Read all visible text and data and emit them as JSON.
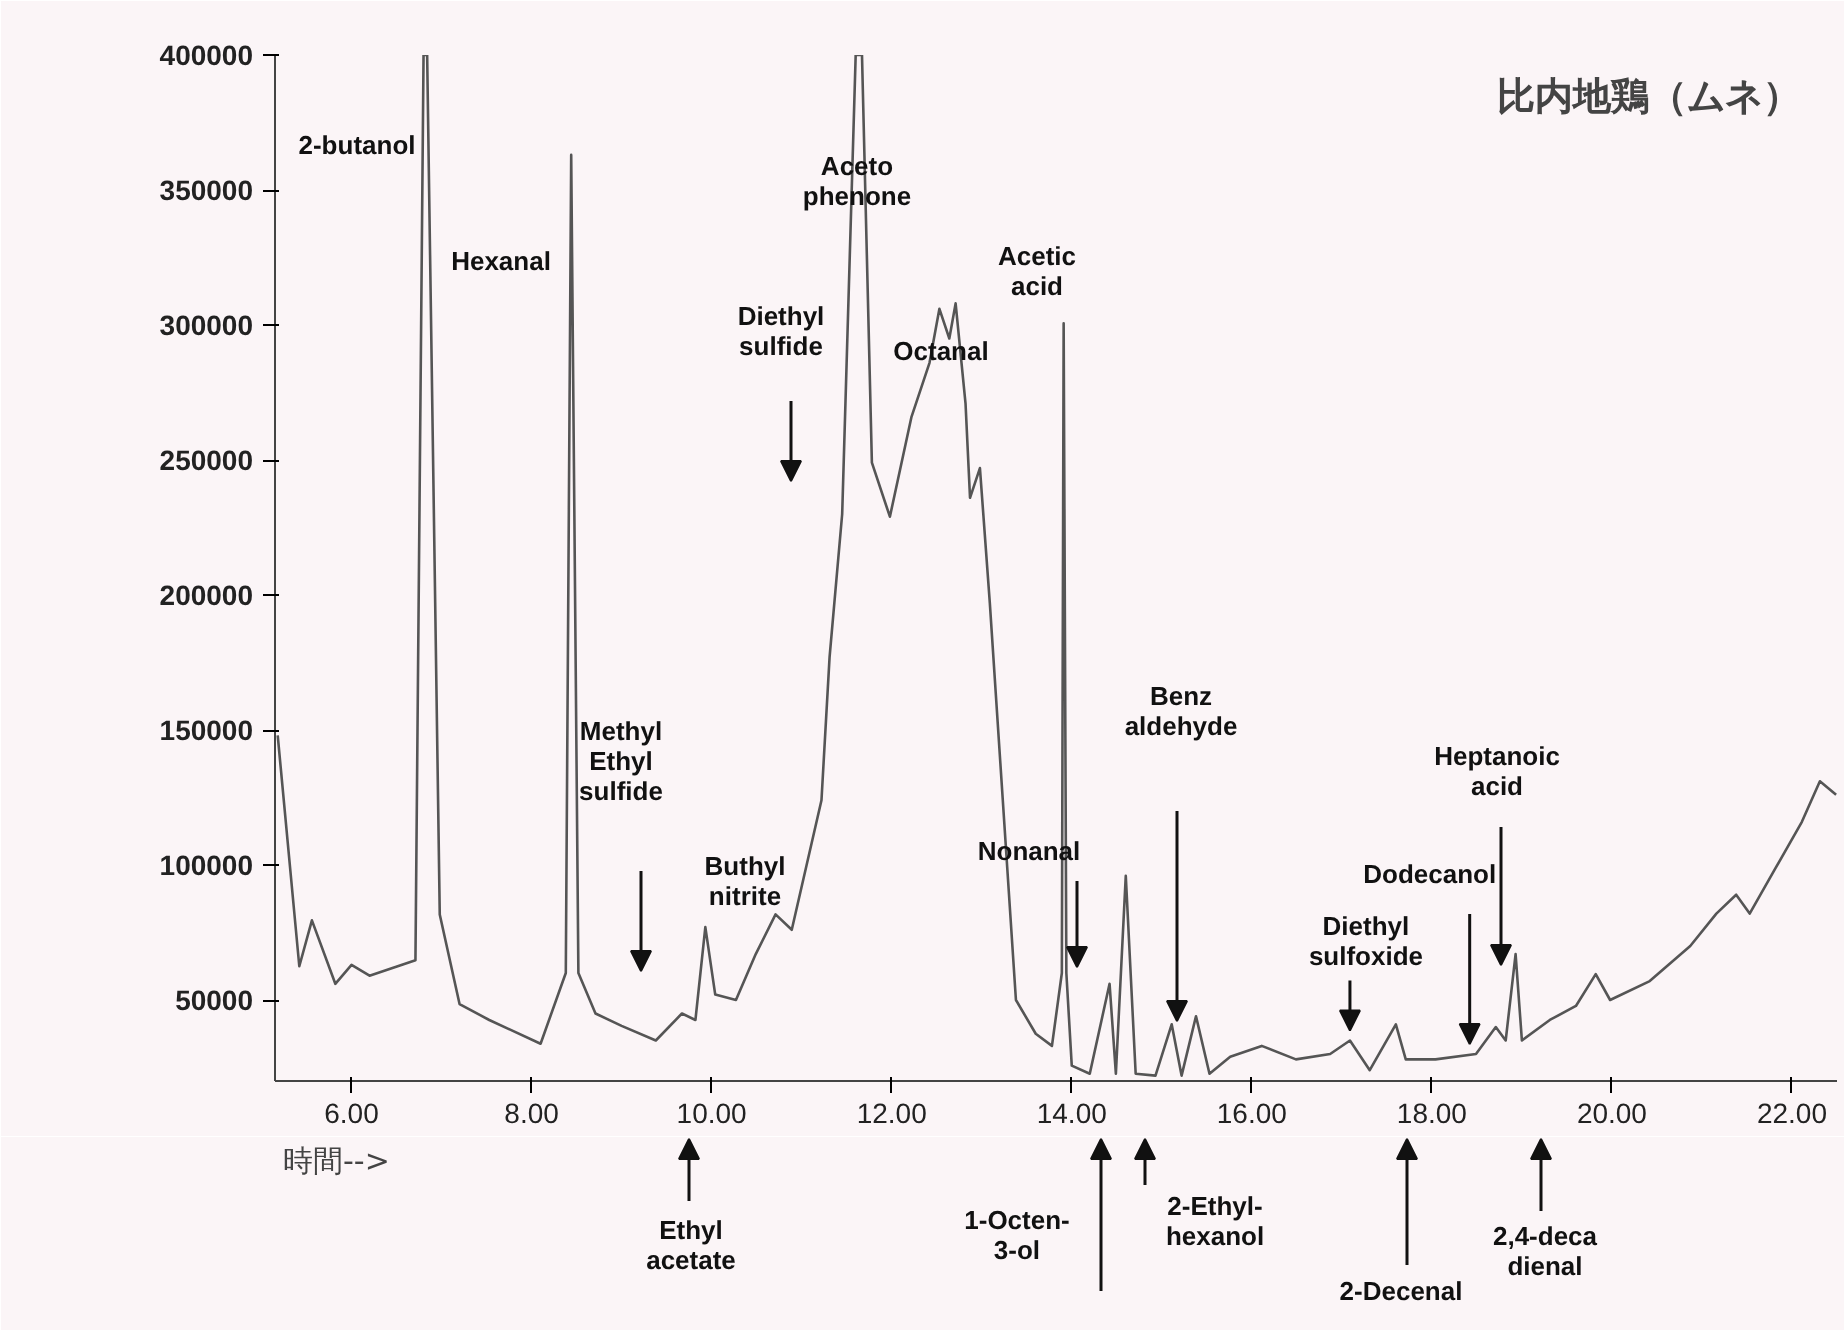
{
  "chart_data": {
    "type": "line",
    "title": "比内地鶏（ムネ）",
    "xlabel": "時間-->",
    "x": [
      5.18,
      5.42,
      5.56,
      5.82,
      6.0,
      6.2,
      6.71,
      6.8,
      6.84,
      6.98,
      7.2,
      7.53,
      8.1,
      8.38,
      8.44,
      8.52,
      8.71,
      9.0,
      9.38,
      9.67,
      9.82,
      9.93,
      10.04,
      10.27,
      10.49,
      10.71,
      10.89,
      11.22,
      11.31,
      11.45,
      11.6,
      11.67,
      11.78,
      11.98,
      12.22,
      12.42,
      12.53,
      12.64,
      12.71,
      12.82,
      12.87,
      12.98,
      13.09,
      13.38,
      13.6,
      13.78,
      13.89,
      13.91,
      13.94,
      14.0,
      14.2,
      14.42,
      14.49,
      14.6,
      14.71,
      14.93,
      15.11,
      15.22,
      15.38,
      15.53,
      15.76,
      16.11,
      16.49,
      16.87,
      17.09,
      17.31,
      17.6,
      17.71,
      18.04,
      18.49,
      18.71,
      18.82,
      18.93,
      19.0,
      19.31,
      19.6,
      19.82,
      19.98,
      20.42,
      20.87,
      21.16,
      21.38,
      21.53,
      21.82,
      22.11,
      22.31,
      22.49
    ],
    "values": [
      148000,
      62500,
      79500,
      56000,
      63000,
      59000,
      64700,
      400000,
      400000,
      81700,
      48500,
      42600,
      33800,
      60000,
      363000,
      60000,
      45000,
      40400,
      35000,
      45000,
      42600,
      77000,
      52000,
      50000,
      67000,
      81700,
      76000,
      124000,
      177000,
      230000,
      400000,
      400000,
      249000,
      229000,
      266000,
      286000,
      306000,
      295000,
      308000,
      271000,
      236000,
      247000,
      197000,
      50000,
      37500,
      33000,
      60000,
      300600,
      60000,
      25700,
      22700,
      56000,
      22700,
      96000,
      22700,
      22000,
      41000,
      22000,
      44000,
      22700,
      29000,
      33000,
      28000,
      30000,
      35000,
      24000,
      41000,
      28000,
      28000,
      30000,
      40000,
      35000,
      67000,
      35000,
      42600,
      47800,
      59600,
      50000,
      57000,
      70000,
      82000,
      89000,
      82000,
      99000,
      116000,
      131000,
      126000
    ],
    "color": "#555555",
    "line_style": "solid",
    "marker": "none",
    "grid": false,
    "xlim": [
      5.15,
      22.5
    ],
    "ylim": [
      20000,
      400000
    ],
    "xticks": [
      {
        "value": 6,
        "label": "6.00"
      },
      {
        "value": 8,
        "label": "8.00"
      },
      {
        "value": 10,
        "label": "10.00"
      },
      {
        "value": 12,
        "label": "12.00"
      },
      {
        "value": 14,
        "label": "14.00"
      },
      {
        "value": 16,
        "label": "16.00"
      },
      {
        "value": 18,
        "label": "18.00"
      },
      {
        "value": 20,
        "label": "20.00"
      },
      {
        "value": 22,
        "label": "22.00"
      }
    ],
    "yticks": [
      50000,
      100000,
      150000,
      200000,
      250000,
      300000,
      350000,
      400000
    ],
    "annotations": [
      "2-butanol",
      "Hexanal",
      "Aceto\nphenone",
      "Diethyl\nsulfide",
      "Octanal",
      "Acetic\nacid",
      "Methyl\nEthyl\nsulfide",
      "Buthyl\nnitrite",
      "Nonanal",
      "Benz\naldehyde",
      {
        "text": "Diethyl\nsulfoxide",
        "x": 17.09,
        "y": 35000
      },
      {
        "text": "Dodecanol",
        "x": 18.42,
        "y": 30000
      },
      "Heptanoic\nacid",
      "Ethyl\nacetate",
      "1-Octen-\n3-ol",
      "2-Ethyl-\nhexanol",
      "2-Decenal",
      "2,4-deca\ndienal"
    ]
  }
}
